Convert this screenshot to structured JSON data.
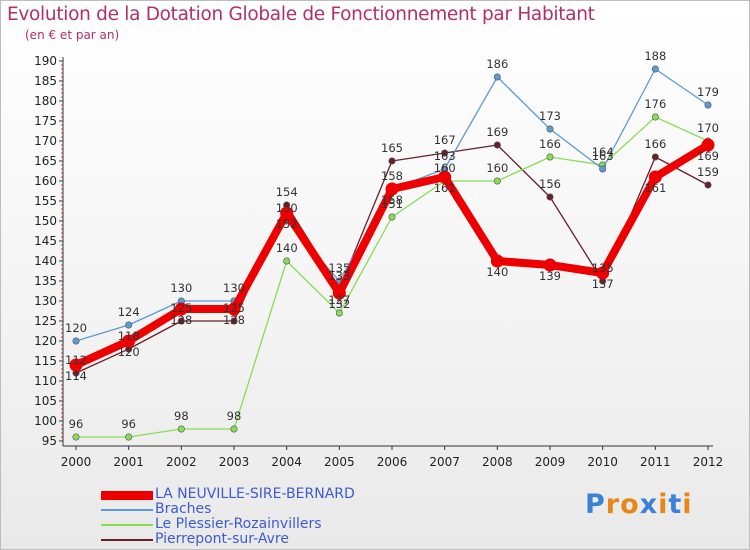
{
  "chart_data": {
    "type": "line",
    "title": "Evolution de la Dotation Globale de Fonctionnement par Habitant",
    "subtitle": "(en € et par an)",
    "xlabel": "",
    "ylabel": "",
    "ylim": [
      95,
      190
    ],
    "y_ticks": [
      "95",
      "100",
      "105",
      "110",
      "115",
      "120",
      "125",
      "130",
      "135",
      "140",
      "145",
      "150",
      "155",
      "160",
      "165",
      "170",
      "175",
      "180",
      "185",
      "190"
    ],
    "categories": [
      "2000",
      "2001",
      "2002",
      "2003",
      "2004",
      "2005",
      "2006",
      "2007",
      "2008",
      "2009",
      "2010",
      "2011",
      "2012"
    ],
    "series": [
      {
        "name": "LA NEUVILLE-SIRE-BERNARD",
        "color": "#ee0000",
        "values": [
          114,
          120,
          128,
          128,
          152,
          132,
          158,
          161,
          140,
          139,
          137,
          161,
          169
        ]
      },
      {
        "name": "Braches",
        "color": "#5b9bd5",
        "values": [
          120,
          124,
          130,
          130,
          150,
          135,
          158,
          163,
          186,
          173,
          163,
          188,
          179
        ]
      },
      {
        "name": "Le Plessier-Rozainvillers",
        "color": "#88dd55",
        "values": [
          96,
          96,
          98,
          98,
          140,
          127,
          151,
          160,
          160,
          166,
          164,
          176,
          170
        ]
      },
      {
        "name": "Pierrepont-sur-Avre",
        "color": "#6a1f2a",
        "values": [
          112,
          118,
          125,
          125,
          154,
          133,
          165,
          167,
          169,
          156,
          135,
          166,
          159
        ]
      }
    ],
    "grid": false,
    "legend_position": "bottom-left"
  },
  "logo": {
    "text": "Proxiti",
    "colors": [
      "#3b82d6",
      "#e8861a",
      "#e8861a",
      "#3b82d6",
      "#e8861a",
      "#3b82d6",
      "#e8861a"
    ]
  }
}
